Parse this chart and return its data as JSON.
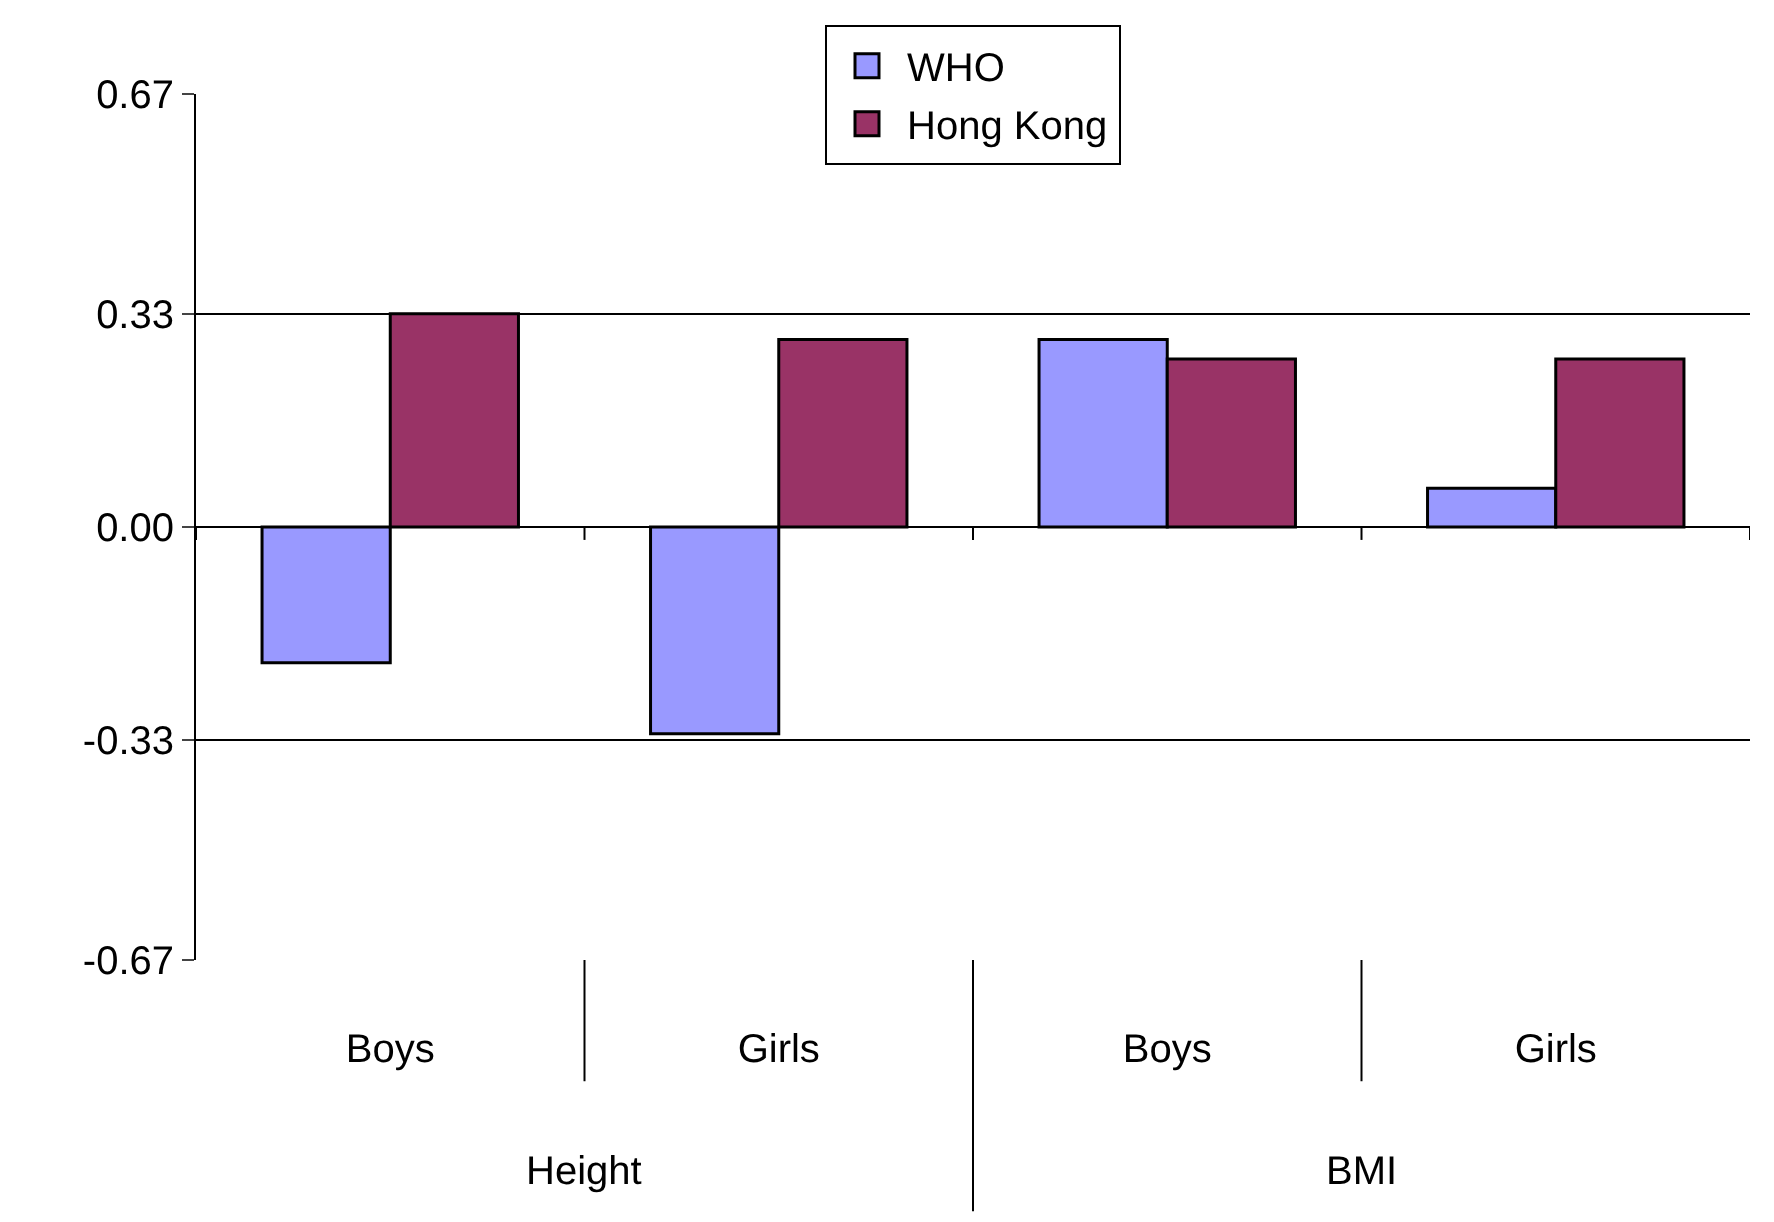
{
  "chart_data": {
    "type": "bar",
    "categories": [
      "Boys",
      "Girls",
      "Boys",
      "Girls"
    ],
    "series": [
      {
        "name": "WHO",
        "color": "#9999ff",
        "values": [
          -0.21,
          -0.32,
          0.29,
          0.06
        ]
      },
      {
        "name": "Hong Kong",
        "color": "#993366",
        "values": [
          0.33,
          0.29,
          0.26,
          0.26
        ]
      }
    ],
    "annotations": [
      "Height",
      "BMI"
    ],
    "ylim": [
      -0.67,
      0.67
    ],
    "yticks": [
      -0.67,
      -0.33,
      {
        "value": 0,
        "label": "0.00"
      },
      0.33,
      0.67
    ],
    "grid": "y",
    "legend": "top"
  }
}
